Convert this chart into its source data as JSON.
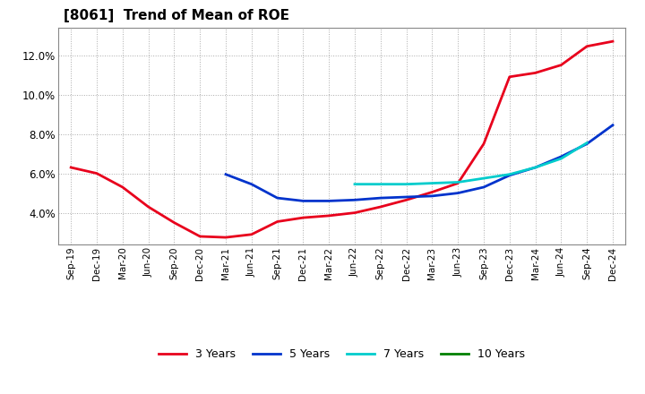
{
  "title": "[8061]  Trend of Mean of ROE",
  "x_labels": [
    "Sep-19",
    "Dec-19",
    "Mar-20",
    "Jun-20",
    "Sep-20",
    "Dec-20",
    "Mar-21",
    "Jun-21",
    "Sep-21",
    "Dec-21",
    "Mar-22",
    "Jun-22",
    "Sep-22",
    "Dec-22",
    "Mar-23",
    "Jun-23",
    "Sep-23",
    "Dec-23",
    "Mar-24",
    "Jun-24",
    "Sep-24",
    "Dec-24"
  ],
  "3y": [
    6.3,
    6.0,
    5.3,
    4.3,
    3.5,
    2.8,
    2.75,
    2.9,
    3.55,
    3.75,
    3.85,
    4.0,
    4.3,
    4.65,
    5.05,
    5.5,
    7.5,
    10.9,
    11.1,
    11.5,
    12.45,
    12.7
  ],
  "5y": [
    null,
    null,
    null,
    null,
    null,
    null,
    5.95,
    5.45,
    4.75,
    4.6,
    4.6,
    4.65,
    4.75,
    4.8,
    4.85,
    5.0,
    5.3,
    5.9,
    6.3,
    6.85,
    7.5,
    8.45
  ],
  "7y": [
    null,
    null,
    null,
    null,
    null,
    null,
    null,
    null,
    null,
    null,
    null,
    5.45,
    5.45,
    5.45,
    5.5,
    5.55,
    5.75,
    5.95,
    6.3,
    6.75,
    7.55,
    null
  ],
  "10y": [
    null,
    null,
    null,
    null,
    null,
    null,
    null,
    null,
    null,
    null,
    null,
    null,
    null,
    null,
    null,
    null,
    null,
    null,
    null,
    null,
    null,
    null
  ],
  "colors": {
    "3y": "#e8001c",
    "5y": "#0033cc",
    "7y": "#00cccc",
    "10y": "#008000"
  },
  "ylim": [
    2.4,
    13.4
  ],
  "yticks": [
    4.0,
    6.0,
    8.0,
    10.0,
    12.0
  ],
  "background_color": "#ffffff",
  "plot_bg": "#ffffff",
  "legend_labels": [
    "3 Years",
    "5 Years",
    "7 Years",
    "10 Years"
  ]
}
